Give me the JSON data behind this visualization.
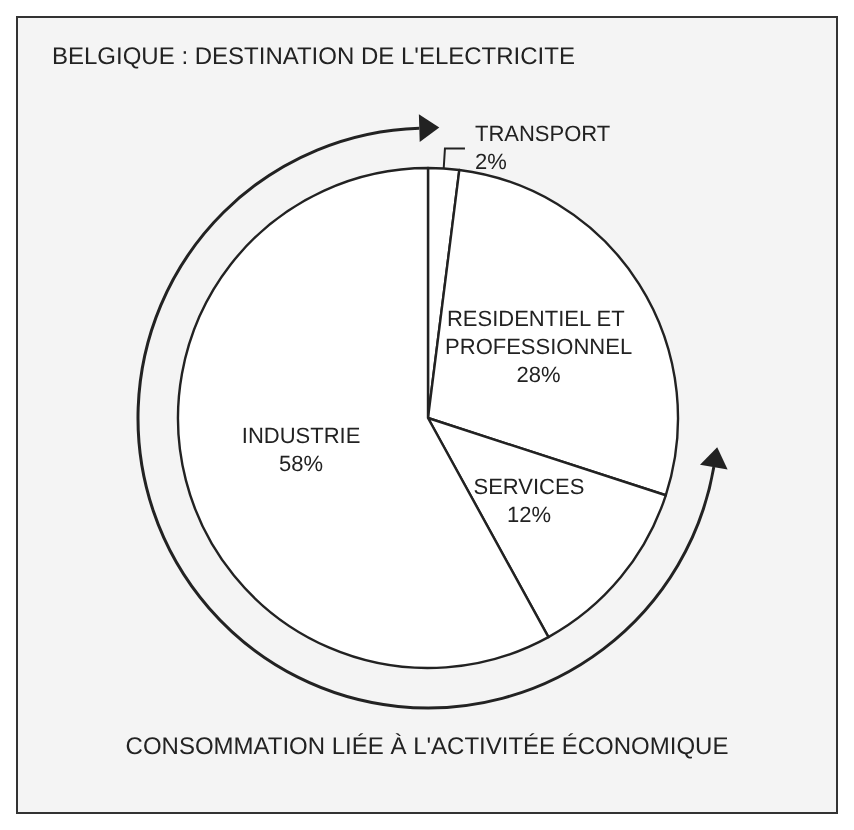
{
  "chart_data": {
    "type": "pie",
    "title": "BELGIQUE : DESTINATION DE L'ELECTRICITE",
    "categories": [
      "TRANSPORT",
      "RESIDENTIEL ET PROFESSIONNEL",
      "SERVICES",
      "INDUSTRIE"
    ],
    "values": [
      2,
      28,
      12,
      58
    ],
    "value_labels": [
      "2%",
      "28%",
      "12%",
      "58%"
    ],
    "colors": [
      "#ffffff",
      "#ffffff",
      "#ffffff",
      "#ffffff"
    ],
    "annotations": [
      "CONSOMMATION LIÉE À L'ACTIVITÉE ÉCONOMIQUE"
    ]
  }
}
